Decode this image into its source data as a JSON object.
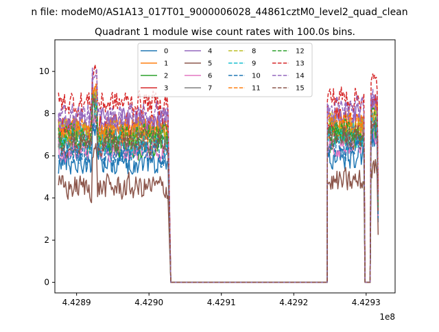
{
  "figure": {
    "suptitle": "n file: modeM0/AS1A13_017T01_9000006028_44861cztM0_level2_quad_clean",
    "title": "Quadrant 1 module wise count rates with 100.0s bins.",
    "offset_text": "1e8"
  },
  "chart_data": {
    "type": "line",
    "title": "Quadrant 1 module wise count rates with 100.0s bins.",
    "xlabel": "",
    "ylabel": "",
    "x_scale_offset": "1e8",
    "xlim": [
      4.42887,
      4.42934
    ],
    "ylim": [
      -0.5,
      11.5
    ],
    "x_ticks": [
      4.4289,
      4.429,
      4.4291,
      4.4292,
      4.4293
    ],
    "x_tick_labels": [
      "4.4289",
      "4.4290",
      "4.4291",
      "4.4292",
      "4.4293"
    ],
    "y_ticks": [
      0,
      2,
      4,
      6,
      8,
      10
    ],
    "y_tick_labels": [
      "0",
      "2",
      "4",
      "6",
      "8",
      "10"
    ],
    "grid": false,
    "legend": {
      "placement": "top-center",
      "columns": 4
    },
    "segments": {
      "seg1": [
        4.428875,
        4.429027
      ],
      "drop_end": 4.4290301,
      "zero": [
        4.4290301,
        4.4292462
      ],
      "seg2": [
        4.4292465,
        4.4292972
      ],
      "dip_zero": [
        4.4292985,
        4.4293055
      ],
      "seg3": [
        4.4293068,
        4.4293158
      ]
    },
    "series": [
      {
        "name": "0",
        "color": "#1f77b4",
        "style": "solid",
        "level": 5.7
      },
      {
        "name": "1",
        "color": "#ff7f0e",
        "style": "solid",
        "level": 7.1
      },
      {
        "name": "2",
        "color": "#2ca02c",
        "style": "solid",
        "level": 6.5
      },
      {
        "name": "3",
        "color": "#d62728",
        "style": "solid",
        "level": 7.4
      },
      {
        "name": "4",
        "color": "#9467bd",
        "style": "solid",
        "level": 7.6
      },
      {
        "name": "5",
        "color": "#8c564b",
        "style": "solid",
        "level": 4.5
      },
      {
        "name": "6",
        "color": "#e377c2",
        "style": "solid",
        "level": 6.3
      },
      {
        "name": "7",
        "color": "#7f7f7f",
        "style": "solid",
        "level": 6.9
      },
      {
        "name": "8",
        "color": "#bcbd22",
        "style": "dashed",
        "level": 7.1
      },
      {
        "name": "9",
        "color": "#17becf",
        "style": "dashed",
        "level": 6.7
      },
      {
        "name": "10",
        "color": "#1f77b4",
        "style": "dashed",
        "level": 6.1
      },
      {
        "name": "11",
        "color": "#ff7f0e",
        "style": "dashed",
        "level": 7.3
      },
      {
        "name": "12",
        "color": "#2ca02c",
        "style": "dashed",
        "level": 6.9
      },
      {
        "name": "13",
        "color": "#d62728",
        "style": "dashed",
        "level": 8.5
      },
      {
        "name": "14",
        "color": "#9467bd",
        "style": "dashed",
        "level": 7.9
      },
      {
        "name": "15",
        "color": "#8c564b",
        "style": "dashed",
        "level": 6.6
      }
    ]
  }
}
